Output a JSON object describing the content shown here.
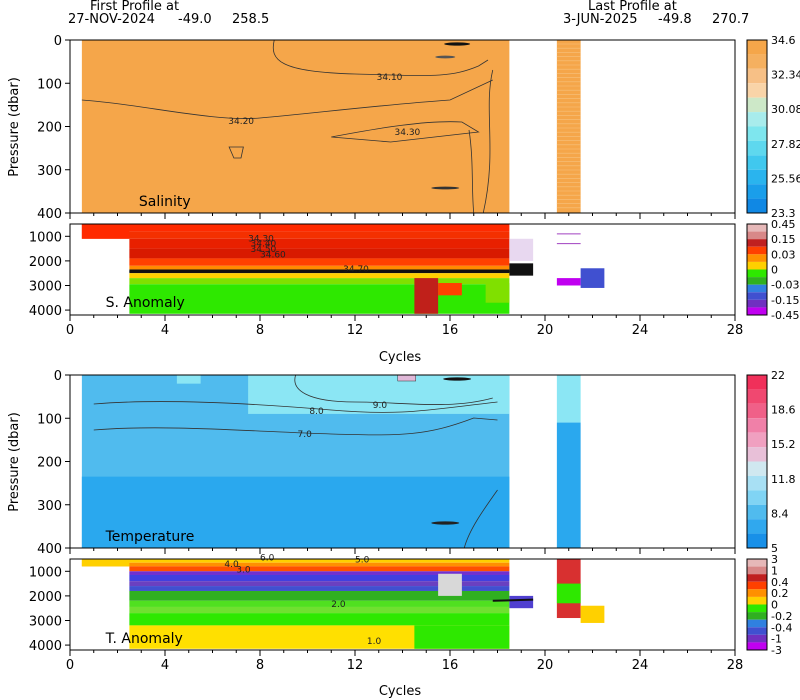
{
  "header": {
    "first_label": "First Profile at",
    "first_date": "27-NOV-2024",
    "first_lat": "-49.0",
    "first_lon": "258.5",
    "last_label": "Last Profile at",
    "last_date": "3-JUN-2025",
    "last_lat": "-49.8",
    "last_lon": "270.7"
  },
  "chart_data": [
    {
      "type": "heatmap",
      "title": "Salinity",
      "ylabel": "Pressure (dbar)",
      "ylim": [
        0,
        400
      ],
      "yticks": [
        "0",
        "100",
        "200",
        "300",
        "400"
      ],
      "xlim": [
        0,
        28
      ],
      "contour_labels": [
        "34.10",
        "34.20",
        "34.30"
      ],
      "colorbar": [
        "34.6",
        "32.34",
        "30.08",
        "27.82",
        "25.56",
        "23.3"
      ]
    },
    {
      "type": "heatmap",
      "title": "S. Anomaly",
      "ylim": [
        500,
        4200
      ],
      "yticks": [
        "1000",
        "2000",
        "3000",
        "4000"
      ],
      "xlim": [
        0,
        28
      ],
      "xticks": [
        "0",
        "4",
        "8",
        "12",
        "16",
        "20",
        "24",
        "28"
      ],
      "xlabel": "Cycles",
      "contour_labels": [
        "34.30",
        "34.40",
        "34.50",
        "34.60",
        "34.70"
      ],
      "colorbar": [
        "0.45",
        "0.15",
        "0.03",
        "0",
        "-0.03",
        "-0.15",
        "-0.45"
      ]
    },
    {
      "type": "heatmap",
      "title": "Temperature",
      "ylabel": "Pressure (dbar)",
      "ylim": [
        0,
        400
      ],
      "yticks": [
        "0",
        "100",
        "200",
        "300",
        "400"
      ],
      "xlim": [
        0,
        28
      ],
      "contour_labels": [
        "9.0",
        "8.0",
        "7.0"
      ],
      "colorbar": [
        "22",
        "18.6",
        "15.2",
        "11.8",
        "8.4",
        "5"
      ]
    },
    {
      "type": "heatmap",
      "title": "T. Anomaly",
      "ylim": [
        500,
        4200
      ],
      "yticks": [
        "1000",
        "2000",
        "3000",
        "4000"
      ],
      "xlim": [
        0,
        28
      ],
      "xticks": [
        "0",
        "4",
        "8",
        "12",
        "16",
        "20",
        "24",
        "28"
      ],
      "xlabel": "Cycles",
      "contour_labels": [
        "6.0",
        "5.0",
        "4.0",
        "3.0",
        "2.0",
        "1.0"
      ],
      "colorbar": [
        "3",
        "1",
        "0.4",
        "0.2",
        "0",
        "-0.2",
        "-0.4",
        "-1",
        "-3"
      ]
    }
  ]
}
